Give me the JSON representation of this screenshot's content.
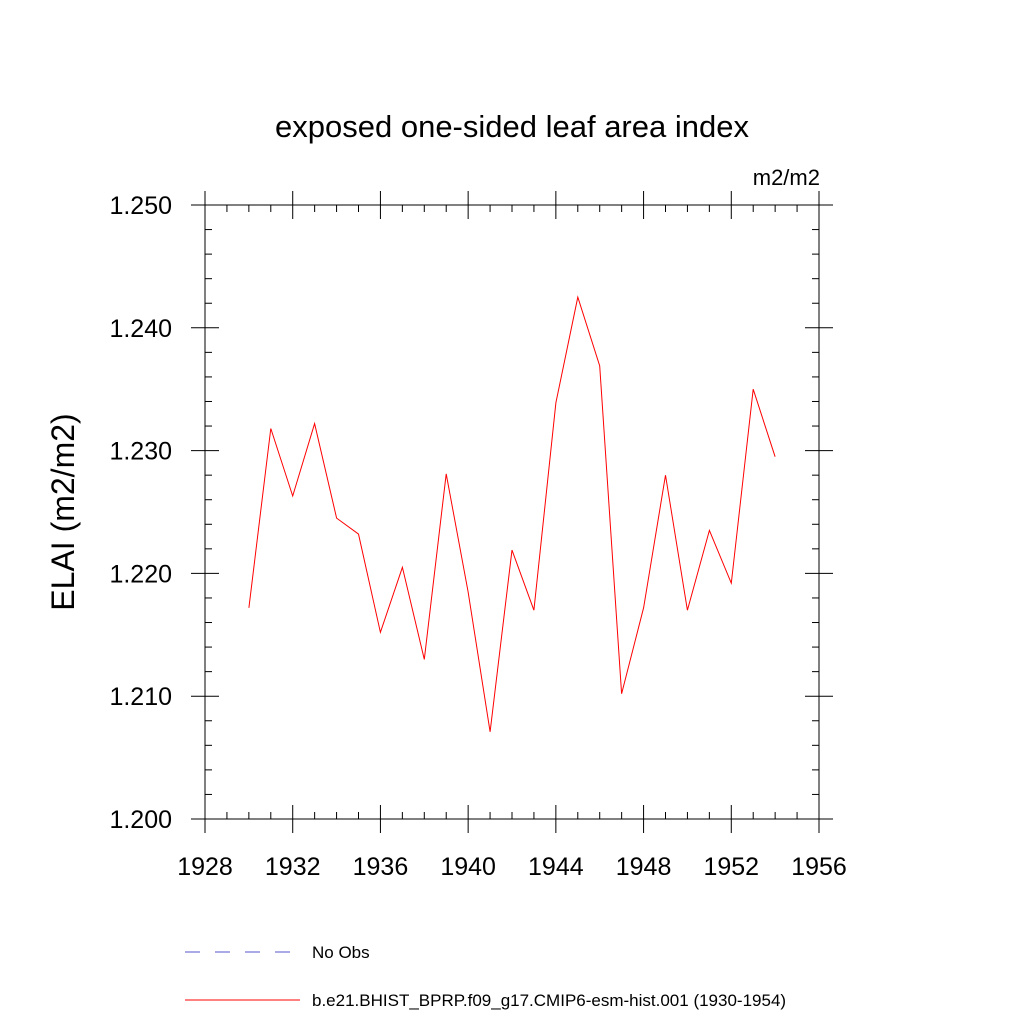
{
  "chart_data": {
    "type": "line",
    "title": "exposed one-sided leaf area index",
    "units_label": "m2/m2",
    "ylabel": "ELAI  (m2/m2)",
    "xlabel": "",
    "xlim": [
      1928,
      1956
    ],
    "ylim": [
      1.2,
      1.25
    ],
    "x_ticks": [
      1928,
      1932,
      1936,
      1940,
      1944,
      1948,
      1952,
      1956
    ],
    "x_tick_labels": [
      "1928",
      "1932",
      "1936",
      "1940",
      "1944",
      "1948",
      "1952",
      "1956"
    ],
    "x_minor_step": 1,
    "y_ticks": [
      1.2,
      1.21,
      1.22,
      1.23,
      1.24,
      1.25
    ],
    "y_tick_labels": [
      "1.200",
      "1.210",
      "1.220",
      "1.230",
      "1.240",
      "1.250"
    ],
    "y_minor_step": 0.002,
    "grid": false,
    "legend_position": "bottom",
    "series": [
      {
        "name": "b.e21.BHIST_BPRP.f09_g17.CMIP6-esm-hist.001 (1930-1954)",
        "color": "#ff0000",
        "style": "solid",
        "x": [
          1930,
          1931,
          1932,
          1933,
          1934,
          1935,
          1936,
          1937,
          1938,
          1939,
          1940,
          1941,
          1942,
          1943,
          1944,
          1945,
          1946,
          1947,
          1948,
          1949,
          1950,
          1951,
          1952,
          1953,
          1954
        ],
        "values": [
          1.2172,
          1.2318,
          1.2263,
          1.2322,
          1.2245,
          1.2232,
          1.2152,
          1.2205,
          1.213,
          1.2281,
          1.2185,
          1.2071,
          1.2219,
          1.217,
          1.2339,
          1.2425,
          1.2369,
          1.2102,
          1.2172,
          1.228,
          1.217,
          1.2235,
          1.2192,
          1.235,
          1.2295
        ]
      }
    ],
    "legend": [
      {
        "label": "No Obs",
        "color": "#5555cc",
        "style": "dashed"
      },
      {
        "label": "b.e21.BHIST_BPRP.f09_g17.CMIP6-esm-hist.001 (1930-1954)",
        "color": "#ff0000",
        "style": "solid"
      }
    ]
  }
}
